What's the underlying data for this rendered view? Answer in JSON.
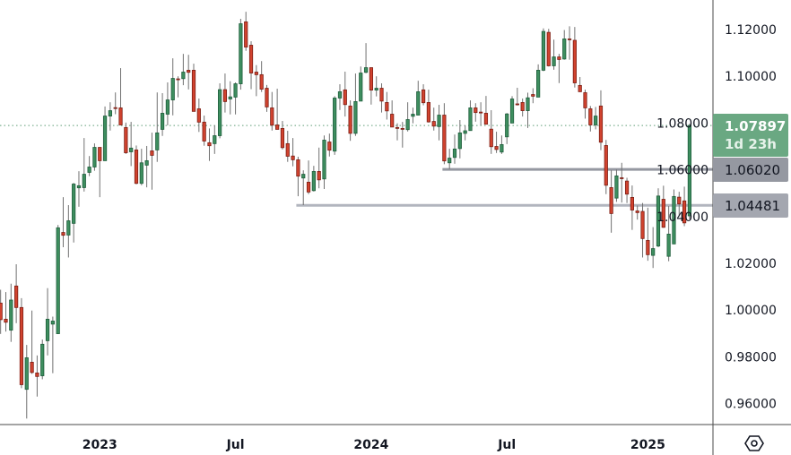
{
  "chart_data": {
    "type": "candlestick",
    "candle_format": [
      "open",
      "high",
      "low",
      "close"
    ],
    "candles": [
      [
        1.003,
        1.0087,
        0.9898,
        0.9959
      ],
      [
        0.9961,
        1.0077,
        0.9908,
        0.9948
      ],
      [
        0.9914,
        1.0113,
        0.9864,
        1.0043
      ],
      [
        1.0103,
        1.0196,
        0.9944,
        1.0011
      ],
      [
        1.0011,
        1.0051,
        0.9666,
        0.9681
      ],
      [
        0.9661,
        0.9851,
        0.9536,
        0.9796
      ],
      [
        0.9777,
        0.9998,
        0.9727,
        0.9733
      ],
      [
        0.9731,
        0.9806,
        0.963,
        0.9716
      ],
      [
        0.9719,
        0.9874,
        0.9704,
        0.9854
      ],
      [
        0.9869,
        1.0094,
        0.9806,
        0.9961
      ],
      [
        0.994,
        0.9972,
        0.973,
        0.9953
      ],
      [
        0.9899,
        1.0364,
        0.9899,
        1.0352
      ],
      [
        1.0332,
        1.0483,
        1.0269,
        1.032
      ],
      [
        1.0321,
        1.0449,
        1.0225,
        1.0382
      ],
      [
        1.0371,
        1.0544,
        1.0289,
        1.0539
      ],
      [
        1.0523,
        1.0594,
        1.0442,
        1.0532
      ],
      [
        1.0524,
        1.0736,
        1.0507,
        1.0581
      ],
      [
        1.0589,
        1.0659,
        1.0573,
        1.0612
      ],
      [
        1.0612,
        1.0713,
        1.0596,
        1.0696
      ],
      [
        1.0696,
        1.0696,
        1.0483,
        1.0639
      ],
      [
        1.0639,
        1.0871,
        1.0639,
        1.083
      ],
      [
        1.083,
        1.0889,
        1.0768,
        1.0853
      ],
      [
        1.0866,
        1.0931,
        1.0838,
        1.0864
      ],
      [
        1.0865,
        1.1035,
        1.0792,
        1.0792
      ],
      [
        1.0781,
        1.0802,
        1.0668,
        1.0673
      ],
      [
        1.0677,
        1.0805,
        1.0616,
        1.0693
      ],
      [
        1.0685,
        1.0704,
        1.0538,
        1.0542
      ],
      [
        1.0542,
        1.069,
        1.0534,
        1.063
      ],
      [
        1.062,
        1.0702,
        1.0525,
        1.0639
      ],
      [
        1.0681,
        1.0759,
        1.0515,
        1.0662
      ],
      [
        1.0685,
        1.0931,
        1.0634,
        1.0758
      ],
      [
        1.0773,
        1.0928,
        1.0745,
        1.0842
      ],
      [
        1.0838,
        1.0974,
        1.079,
        1.0899
      ],
      [
        1.0899,
        1.1077,
        1.0833,
        1.0991
      ],
      [
        1.0989,
        1.1,
        1.091,
        1.0986
      ],
      [
        1.099,
        1.1096,
        1.0962,
        1.1018
      ],
      [
        1.1026,
        1.1092,
        1.0944,
        1.1017
      ],
      [
        1.1026,
        1.1054,
        1.085,
        1.085
      ],
      [
        1.0861,
        1.0905,
        1.0762,
        1.0804
      ],
      [
        1.0804,
        1.0832,
        1.0703,
        1.0723
      ],
      [
        1.0716,
        1.0777,
        1.0638,
        1.0703
      ],
      [
        1.0712,
        1.079,
        1.0668,
        1.0746
      ],
      [
        1.0746,
        1.097,
        1.0735,
        1.0943
      ],
      [
        1.0943,
        1.1012,
        1.0845,
        1.0892
      ],
      [
        1.0903,
        1.0979,
        1.0837,
        1.0912
      ],
      [
        1.0911,
        1.0974,
        1.0837,
        1.0968
      ],
      [
        1.0968,
        1.1246,
        1.0943,
        1.1225
      ],
      [
        1.1233,
        1.1276,
        1.1109,
        1.1125
      ],
      [
        1.1133,
        1.115,
        1.0945,
        1.1014
      ],
      [
        1.1018,
        1.1048,
        1.0915,
        1.1007
      ],
      [
        1.1007,
        1.1065,
        1.0933,
        1.0945
      ],
      [
        1.0949,
        1.0963,
        1.0848,
        1.0869
      ],
      [
        1.0865,
        1.0933,
        1.0768,
        1.0791
      ],
      [
        1.0792,
        1.0947,
        1.0773,
        1.0773
      ],
      [
        1.0777,
        1.0809,
        1.0687,
        1.0695
      ],
      [
        1.0712,
        1.0767,
        1.0634,
        1.0658
      ],
      [
        1.0659,
        1.0736,
        1.0615,
        1.0643
      ],
      [
        1.0643,
        1.0656,
        1.0487,
        1.0573
      ],
      [
        1.0565,
        1.0598,
        1.0449,
        1.0581
      ],
      [
        1.0547,
        1.064,
        1.0496,
        1.0505
      ],
      [
        1.0511,
        1.0617,
        1.0507,
        1.0593
      ],
      [
        1.0593,
        1.0695,
        1.0521,
        1.0557
      ],
      [
        1.0561,
        1.0747,
        1.0518,
        1.0727
      ],
      [
        1.0719,
        1.0755,
        1.0657,
        1.0684
      ],
      [
        1.068,
        1.0915,
        1.0664,
        1.0907
      ],
      [
        1.0907,
        1.0966,
        1.0856,
        1.0934
      ],
      [
        1.0942,
        1.102,
        1.0828,
        1.0879
      ],
      [
        1.0873,
        1.0897,
        1.0724,
        1.0756
      ],
      [
        1.0756,
        1.1012,
        1.0745,
        1.0892
      ],
      [
        1.0894,
        1.1042,
        1.0894,
        1.1014
      ],
      [
        1.1017,
        1.1142,
        1.1013,
        1.1037
      ],
      [
        1.1037,
        1.1037,
        1.0879,
        1.0941
      ],
      [
        1.0941,
        1.1,
        1.0914,
        1.0949
      ],
      [
        1.0949,
        1.097,
        1.0845,
        1.0894
      ],
      [
        1.0888,
        1.0933,
        1.0815,
        1.0852
      ],
      [
        1.0838,
        1.0897,
        1.0783,
        1.0783
      ],
      [
        1.0781,
        1.0799,
        1.0726,
        1.078
      ],
      [
        1.0777,
        1.0805,
        1.0695,
        1.0776
      ],
      [
        1.0772,
        1.0889,
        1.0764,
        1.0815
      ],
      [
        1.0829,
        1.0866,
        1.0799,
        1.0838
      ],
      [
        1.0834,
        1.0981,
        1.0834,
        1.0934
      ],
      [
        1.0942,
        1.0966,
        1.0876,
        1.0887
      ],
      [
        1.0888,
        1.0943,
        1.0802,
        1.0805
      ],
      [
        1.0807,
        1.0866,
        1.0768,
        1.0787
      ],
      [
        1.0785,
        1.0878,
        1.0726,
        1.0834
      ],
      [
        1.0834,
        1.0885,
        1.0624,
        1.0638
      ],
      [
        1.063,
        1.069,
        1.0603,
        1.065
      ],
      [
        1.0653,
        1.0751,
        1.0626,
        1.0689
      ],
      [
        1.0691,
        1.0813,
        1.0649,
        1.0758
      ],
      [
        1.0756,
        1.079,
        1.0726,
        1.0767
      ],
      [
        1.0768,
        1.0897,
        1.0768,
        1.0865
      ],
      [
        1.0865,
        1.0885,
        1.0806,
        1.0845
      ],
      [
        1.0847,
        1.0889,
        1.079,
        1.0845
      ],
      [
        1.0842,
        1.0916,
        1.0795,
        1.0795
      ],
      [
        1.0774,
        1.0855,
        1.0668,
        1.0699
      ],
      [
        1.07,
        1.0763,
        1.0672,
        1.0687
      ],
      [
        1.0676,
        1.0747,
        1.0668,
        1.0708
      ],
      [
        1.0741,
        1.0843,
        1.071,
        1.0839
      ],
      [
        1.08,
        1.0915,
        1.08,
        1.0903
      ],
      [
        1.0882,
        1.0951,
        1.0875,
        1.0879
      ],
      [
        1.0888,
        1.0905,
        1.0828,
        1.0853
      ],
      [
        1.0853,
        1.093,
        1.0779,
        1.0908
      ],
      [
        1.0922,
        1.0949,
        1.0885,
        1.0915
      ],
      [
        1.0911,
        1.1051,
        1.0911,
        1.1026
      ],
      [
        1.1026,
        1.1205,
        1.1022,
        1.1192
      ],
      [
        1.1188,
        1.1203,
        1.1042,
        1.1045
      ],
      [
        1.1045,
        1.1157,
        1.1028,
        1.1083
      ],
      [
        1.1083,
        1.1096,
        1.0971,
        1.1072
      ],
      [
        1.1074,
        1.1198,
        1.1071,
        1.116
      ],
      [
        1.116,
        1.1214,
        1.1071,
        1.1159
      ],
      [
        1.1154,
        1.1211,
        1.0952,
        1.0972
      ],
      [
        1.0961,
        1.0997,
        1.0934,
        1.0934
      ],
      [
        1.093,
        1.0943,
        1.0819,
        1.0865
      ],
      [
        1.0861,
        1.0873,
        1.0764,
        1.0792
      ],
      [
        1.0792,
        1.0869,
        1.0773,
        1.083
      ],
      [
        1.0873,
        1.094,
        1.0684,
        1.0718
      ],
      [
        1.0704,
        1.0728,
        1.0496,
        1.0534
      ],
      [
        1.0524,
        1.0598,
        1.0331,
        1.0413
      ],
      [
        1.0479,
        1.0601,
        1.0463,
        1.0574
      ],
      [
        1.0566,
        1.063,
        1.046,
        1.0565
      ],
      [
        1.0552,
        1.0566,
        1.0458,
        1.0496
      ],
      [
        1.0482,
        1.0533,
        1.0343,
        1.0428
      ],
      [
        1.0424,
        1.0447,
        1.0387,
        1.0417
      ],
      [
        1.0422,
        1.0458,
        1.0225,
        1.0306
      ],
      [
        1.0298,
        1.0438,
        1.0211,
        1.0237
      ],
      [
        1.0234,
        1.0355,
        1.018,
        1.0263
      ],
      [
        1.0274,
        1.0521,
        1.0269,
        1.0488
      ],
      [
        1.0474,
        1.0532,
        1.0352,
        1.0354
      ],
      [
        1.023,
        1.0445,
        1.0209,
        1.0325
      ],
      [
        1.0283,
        1.0516,
        1.0282,
        1.0486
      ],
      [
        1.0483,
        1.0506,
        1.04,
        1.0454
      ],
      [
        1.0467,
        1.0528,
        1.0359,
        1.0373
      ],
      [
        1.0403,
        1.0797,
        1.0389,
        1.07897
      ]
    ],
    "ylim": [
      0.9475,
      1.1325
    ],
    "y_ticks": [
      "1.12000",
      "1.10000",
      "1.08000",
      "1.06000",
      "1.04000",
      "1.02000",
      "1.00000",
      "0.98000",
      "0.96000"
    ],
    "x_ticks": [
      {
        "label": "2023",
        "candle": 19
      },
      {
        "label": "Jul",
        "candle": 45
      },
      {
        "label": "2024",
        "candle": 71
      },
      {
        "label": "Jul",
        "candle": 97
      },
      {
        "label": "2025",
        "candle": 124
      }
    ],
    "last_price": {
      "value": "1.07897",
      "countdown": "1d 23h",
      "color": "#6aa882"
    },
    "levels": [
      {
        "value": 1.0602,
        "label": "1.06020",
        "from_candle": 85,
        "color": "#9598a1"
      },
      {
        "value": 1.04481,
        "label": "1.04481",
        "from_candle": 57,
        "color": "#b2b5be"
      }
    ],
    "colors": {
      "up": "#3e8e5f",
      "up_border": "#1f5e3c",
      "down": "#d1432f",
      "down_border": "#7d1e14",
      "wick": "#707070"
    }
  },
  "ui": {
    "settings_icon": "hexagon-settings-icon"
  }
}
